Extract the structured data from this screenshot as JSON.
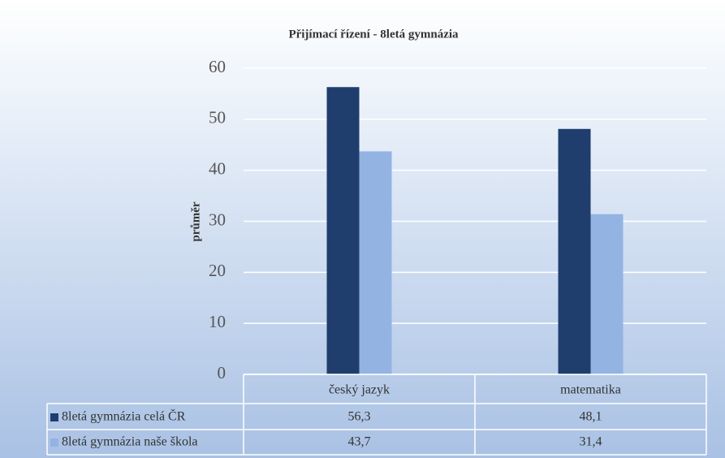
{
  "chart_data": {
    "type": "bar",
    "title": "Přijímací řízení -  8letá gymnázia",
    "ylabel": "průměr",
    "categories": [
      "český jazyk",
      "matematika"
    ],
    "series": [
      {
        "name": "8letá gymnázia celá ČR",
        "color": "#1f3e6e",
        "values": [
          56.3,
          48.1
        ],
        "value_labels": [
          "56,3",
          "48,1"
        ]
      },
      {
        "name": "8letá gymnázia naše škola",
        "color": "#93b3e3",
        "values": [
          43.7,
          31.4
        ],
        "value_labels": [
          "43,7",
          "31,4"
        ]
      }
    ],
    "ylim": [
      0,
      60
    ],
    "yticks": [
      0,
      10,
      20,
      30,
      40,
      50,
      60
    ],
    "grid": true,
    "data_table": true
  }
}
